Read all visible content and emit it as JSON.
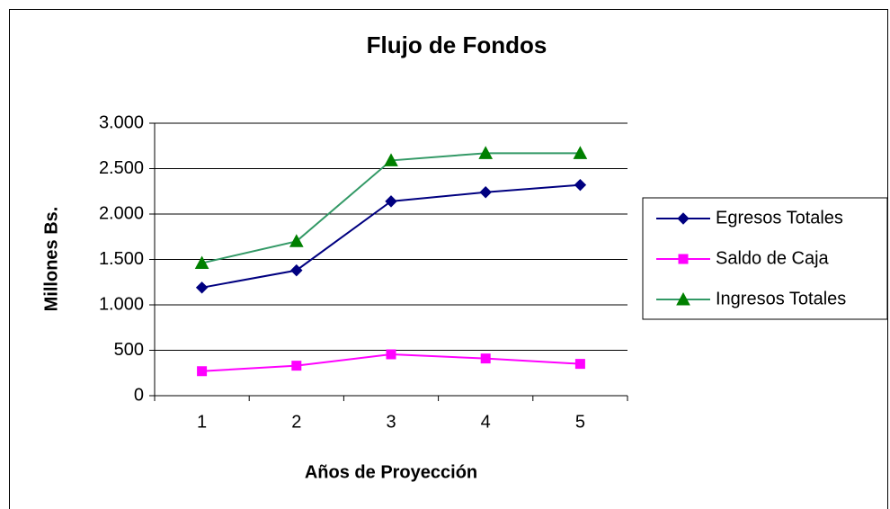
{
  "chart_data": {
    "type": "line",
    "title": "Flujo de Fondos",
    "x_label": "Años de Proyección",
    "y_label": "Millones Bs.",
    "categories": [
      "1",
      "2",
      "3",
      "4",
      "5"
    ],
    "series": [
      {
        "name": "Egresos Totales",
        "color": "#000080",
        "marker": "diamond",
        "values": [
          1190,
          1380,
          2140,
          2240,
          2320
        ]
      },
      {
        "name": "Saldo de Caja",
        "color": "#ff00ff",
        "marker": "square",
        "values": [
          270,
          330,
          455,
          410,
          350
        ]
      },
      {
        "name": "Ingresos Totales",
        "color": "#339966",
        "marker": "triangle",
        "values": [
          1460,
          1700,
          2590,
          2670,
          2670
        ]
      }
    ],
    "ylim": [
      0,
      3000
    ],
    "yticks": [
      0,
      500,
      {
        "value": 1000,
        "label": "1.000"
      },
      {
        "value": 1500,
        "label": "1.500"
      },
      {
        "value": 2000,
        "label": "2.000"
      },
      {
        "value": 2500,
        "label": "2.500"
      },
      {
        "value": 3000,
        "label": "3.000"
      }
    ],
    "grid": true,
    "legend": "right"
  }
}
